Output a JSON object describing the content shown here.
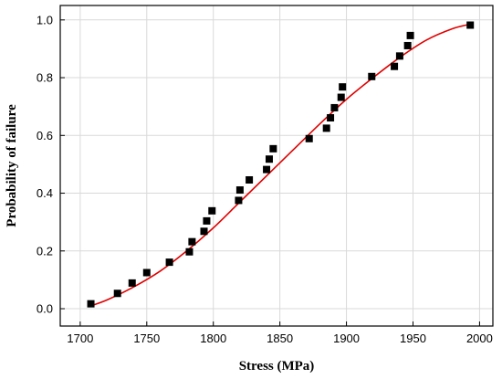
{
  "chart_data": {
    "type": "scatter",
    "title": "",
    "xlabel": "Stress (MPa)",
    "ylabel": "Probability of failure",
    "xlim": [
      1685,
      2010
    ],
    "ylim": [
      -0.06,
      1.05
    ],
    "xticks": [
      1700,
      1750,
      1800,
      1850,
      1900,
      1950,
      2000
    ],
    "yticks": [
      0.0,
      0.2,
      0.4,
      0.6,
      0.8,
      1.0
    ],
    "xtick_labels": [
      "1700",
      "1750",
      "1800",
      "1850",
      "1900",
      "1950",
      "2000"
    ],
    "ytick_labels": [
      "0.0",
      "0.2",
      "0.4",
      "0.6",
      "0.8",
      "1.0"
    ],
    "grid": true,
    "series": [
      {
        "type": "scatter",
        "marker": "square",
        "color": "#000000",
        "x": [
          1708,
          1728,
          1739,
          1750,
          1767,
          1782,
          1784,
          1793,
          1795,
          1799,
          1819,
          1820,
          1827,
          1840,
          1842,
          1845,
          1872,
          1885,
          1888,
          1891,
          1896,
          1897,
          1919,
          1936,
          1940,
          1946,
          1948,
          1993
        ],
        "y": [
          0.017,
          0.053,
          0.089,
          0.125,
          0.161,
          0.197,
          0.232,
          0.268,
          0.304,
          0.339,
          0.375,
          0.411,
          0.446,
          0.482,
          0.518,
          0.554,
          0.589,
          0.625,
          0.661,
          0.696,
          0.732,
          0.768,
          0.804,
          0.839,
          0.875,
          0.911,
          0.946,
          0.982
        ]
      },
      {
        "type": "line",
        "color": "#e00000",
        "x": [
          1708,
          1720,
          1740,
          1760,
          1780,
          1800,
          1820,
          1840,
          1860,
          1880,
          1900,
          1920,
          1940,
          1960,
          1980,
          1993
        ],
        "y": [
          0.01,
          0.03,
          0.075,
          0.13,
          0.2,
          0.28,
          0.37,
          0.46,
          0.55,
          0.64,
          0.725,
          0.8,
          0.87,
          0.93,
          0.97,
          0.985
        ]
      }
    ]
  }
}
